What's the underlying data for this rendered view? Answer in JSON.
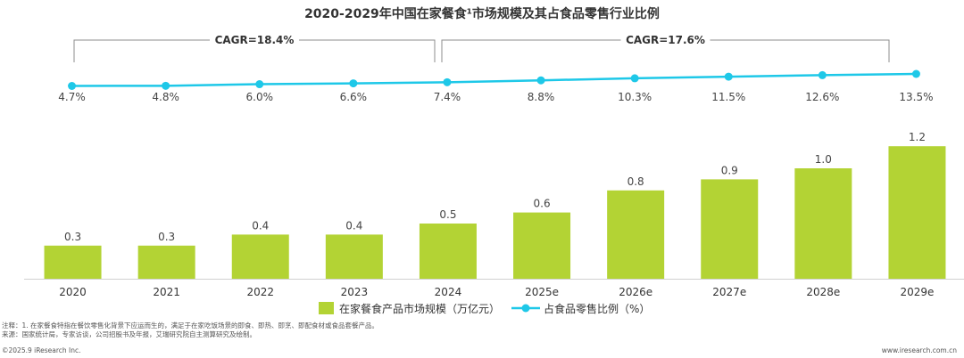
{
  "chart_data": {
    "type": "bar+line",
    "title": "2020-2029年中国在家餐食¹市场规模及其占食品零售行业比例",
    "categories": [
      "2020",
      "2021",
      "2022",
      "2023",
      "2024",
      "2025e",
      "2026e",
      "2027e",
      "2028e",
      "2029e"
    ],
    "series": [
      {
        "name": "在家餐食产品市场规模（万亿元）",
        "type": "bar",
        "color": "#b3d334",
        "values": [
          0.3,
          0.3,
          0.4,
          0.4,
          0.5,
          0.6,
          0.8,
          0.9,
          1.0,
          1.2
        ],
        "labels": [
          "0.3",
          "0.3",
          "0.4",
          "0.4",
          "0.5",
          "0.6",
          "0.8",
          "0.9",
          "1.0",
          "1.2"
        ]
      },
      {
        "name": "占食品零售比例（%）",
        "type": "line",
        "color": "#1ec8e8",
        "values": [
          4.7,
          4.8,
          6.0,
          6.6,
          7.4,
          8.8,
          10.3,
          11.5,
          12.6,
          13.5
        ],
        "labels": [
          "4.7%",
          "4.8%",
          "6.0%",
          "6.6%",
          "7.4%",
          "8.8%",
          "10.3%",
          "11.5%",
          "12.6%",
          "13.5%"
        ]
      }
    ],
    "cagr": [
      {
        "label": "CAGR=18.4%",
        "from": "2020",
        "to": "2024"
      },
      {
        "label": "CAGR=17.6%",
        "from": "2025e",
        "to": "2029e"
      }
    ],
    "legend_position": "bottom-center"
  },
  "footer": {
    "note": "注释：1. 在家餐食特指在餐饮零售化背景下应运而生的，满足于在家吃饭场景的即食、即热、即烹、即配食材或食品套餐产品。",
    "source": "来源：国家统计局，专家访谈，公司招股书及年报，艾瑞研究院自主测算研究及绘制。",
    "copyright": "©2025.9 iResearch Inc.",
    "website": "www.iresearch.com.cn"
  }
}
